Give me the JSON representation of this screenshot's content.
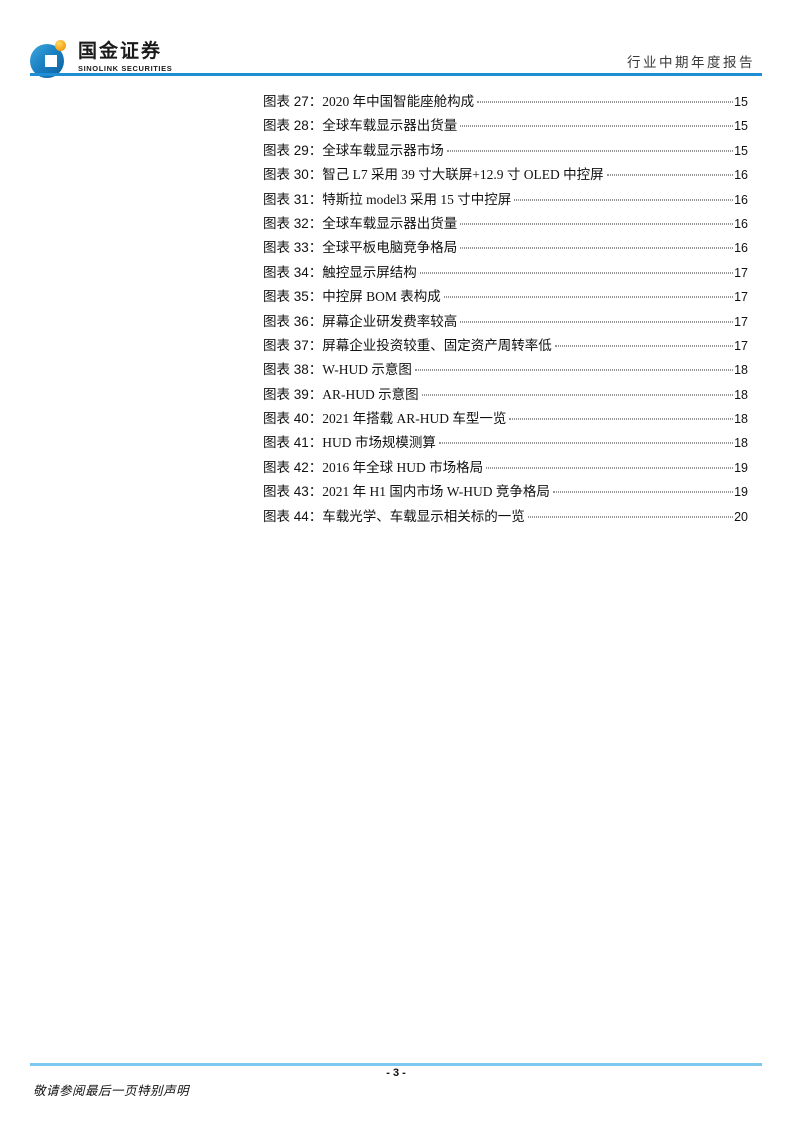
{
  "header": {
    "logo_cn": "国金证券",
    "logo_en": "SINOLINK SECURITIES",
    "report_type": "行业中期年度报告"
  },
  "toc": {
    "entries": [
      {
        "label": "图表 27：",
        "title": "2020 年中国智能座舱构成",
        "page": "15"
      },
      {
        "label": "图表 28：",
        "title": "全球车载显示器出货量",
        "page": "15"
      },
      {
        "label": "图表 29：",
        "title": "全球车载显示器市场",
        "page": "15"
      },
      {
        "label": "图表 30：",
        "title": "智己 L7 采用 39 寸大联屏+12.9 寸 OLED 中控屏",
        "page": "16"
      },
      {
        "label": "图表 31：",
        "title": "特斯拉 model3 采用 15 寸中控屏",
        "page": "16"
      },
      {
        "label": "图表 32：",
        "title": "全球车载显示器出货量",
        "page": "16"
      },
      {
        "label": "图表 33：",
        "title": "全球平板电脑竞争格局",
        "page": "16"
      },
      {
        "label": "图表 34：",
        "title": "触控显示屏结构",
        "page": "17"
      },
      {
        "label": "图表 35：",
        "title": "中控屏 BOM 表构成",
        "page": "17"
      },
      {
        "label": "图表 36：",
        "title": "屏幕企业研发费率较高",
        "page": "17"
      },
      {
        "label": "图表 37：",
        "title": "屏幕企业投资较重、固定资产周转率低",
        "page": "17"
      },
      {
        "label": "图表 38：",
        "title": "W-HUD 示意图",
        "page": "18"
      },
      {
        "label": "图表 39：",
        "title": "AR-HUD 示意图",
        "page": "18"
      },
      {
        "label": "图表 40：",
        "title": "2021 年搭载 AR-HUD 车型一览",
        "page": "18"
      },
      {
        "label": "图表 41：",
        "title": "HUD 市场规模测算",
        "page": "18"
      },
      {
        "label": "图表 42：",
        "title": "2016 年全球 HUD 市场格局",
        "page": "19"
      },
      {
        "label": "图表 43：",
        "title": "2021 年 H1 国内市场 W-HUD 竞争格局",
        "page": "19"
      },
      {
        "label": "图表 44：",
        "title": "车载光学、车载显示相关标的一览",
        "page": "20"
      }
    ]
  },
  "footer": {
    "page_number": "- 3 -",
    "disclaimer": "敬请参阅最后一页特别声明"
  },
  "colors": {
    "header_line": "#1E8FD5",
    "footer_line": "#7EC8F0",
    "logo_blue": "#1B82C4",
    "logo_orange": "#F6A81C"
  }
}
